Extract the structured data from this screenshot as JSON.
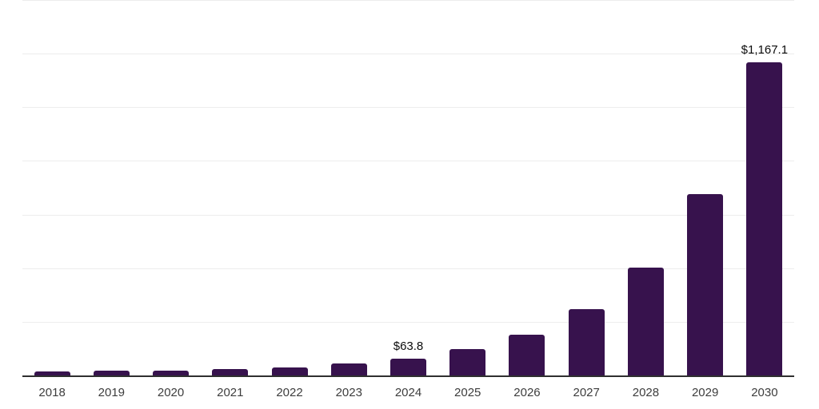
{
  "chart_data": {
    "type": "bar",
    "title": "",
    "xlabel": "",
    "ylabel": "",
    "categories": [
      "2018",
      "2019",
      "2020",
      "2021",
      "2022",
      "2023",
      "2024",
      "2025",
      "2026",
      "2027",
      "2028",
      "2029",
      "2030"
    ],
    "values": [
      16,
      19,
      17,
      24,
      30,
      45,
      63.8,
      97,
      153,
      246,
      401,
      676,
      1167.1
    ],
    "data_labels": {
      "2024": "$63.8",
      "2030": "$1,167.1"
    },
    "ylim": [
      0,
      1400
    ],
    "gridline_step": 200,
    "grid": true,
    "legend": false,
    "colors": {
      "bar": "#37124d",
      "axis": "#2f2f2f",
      "gridline": "#ededed",
      "tick_label": "#3d3d3d",
      "value_label": "#0b0b0b",
      "background": "#ffffff"
    }
  }
}
